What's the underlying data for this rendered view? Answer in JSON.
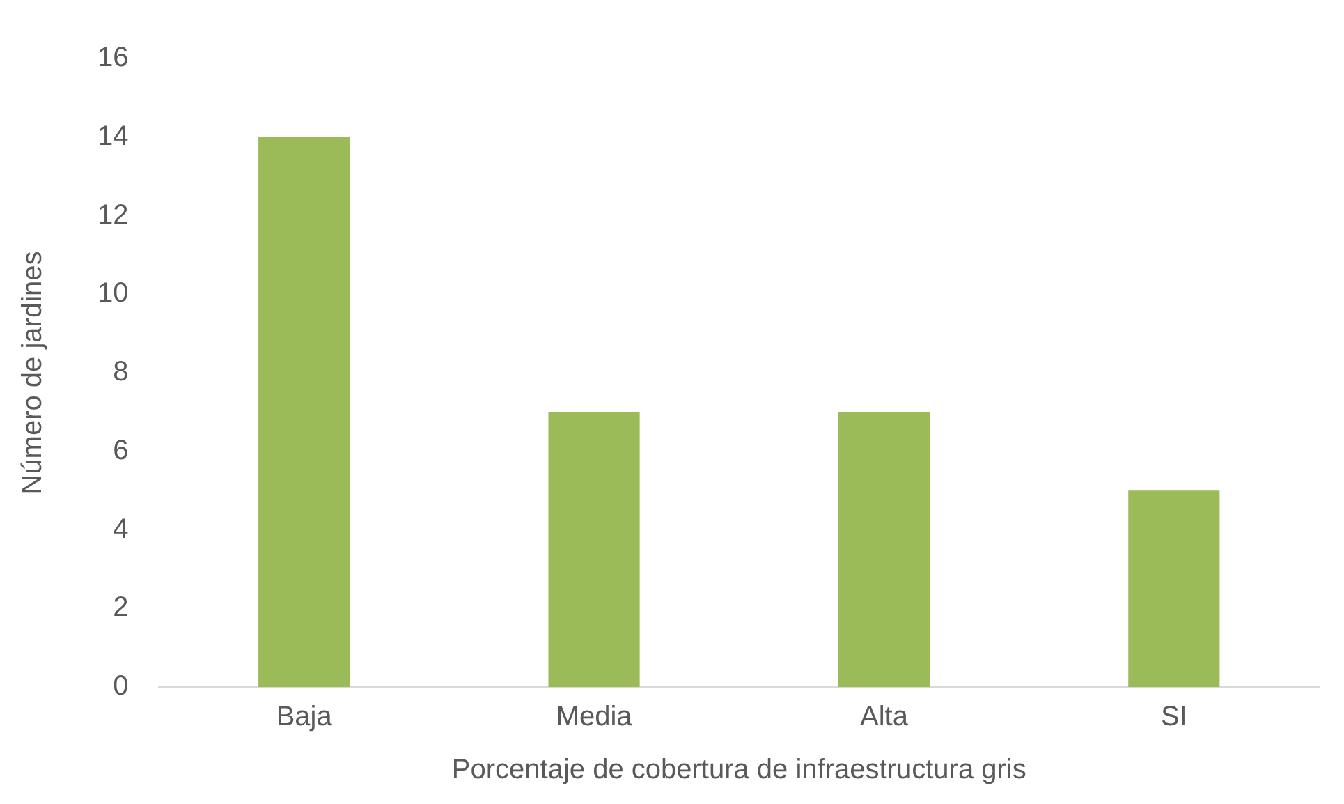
{
  "chart_data": {
    "type": "bar",
    "xlabel": "Porcentaje de cobertura de infraestructura gris",
    "ylabel": "Número de jardines",
    "categories": [
      "Baja",
      "Media",
      "Alta",
      "SI"
    ],
    "values": [
      14,
      7,
      7,
      5
    ],
    "color": "#9bbb59",
    "ylim": [
      0,
      16
    ],
    "yticks": [
      0,
      2,
      4,
      6,
      8,
      10,
      12,
      14,
      16
    ],
    "grid": false,
    "legend": false
  }
}
